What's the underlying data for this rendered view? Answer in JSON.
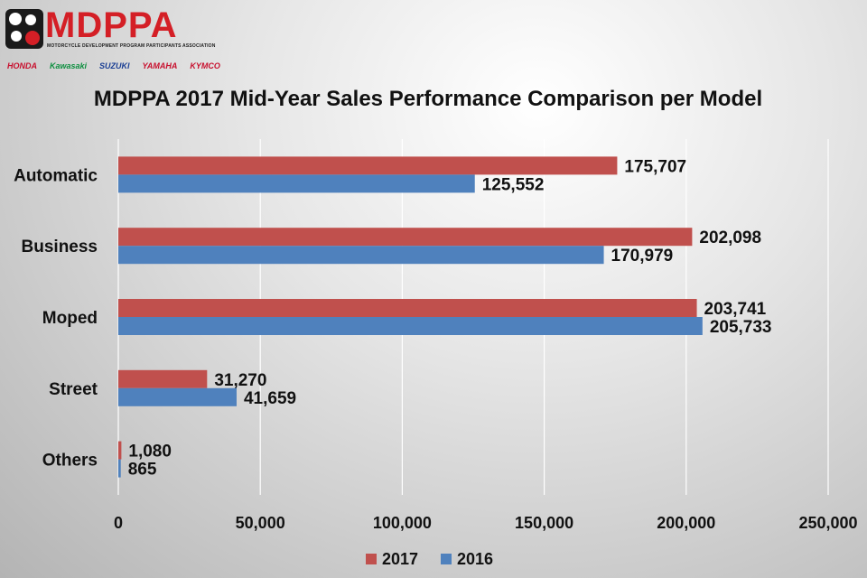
{
  "logo": {
    "brand_name": "MDPPA",
    "brand_subtitle": "MOTORCYCLE DEVELOPMENT PROGRAM PARTICIPANTS ASSOCIATION",
    "makers": [
      "HONDA",
      "Kawasaki",
      "SUZUKI",
      "YAMAHA",
      "KYMCO"
    ]
  },
  "colors": {
    "series_2017": "#c0504d",
    "series_2016": "#4f81bd",
    "grid": "#ffffff",
    "text": "#111111"
  },
  "chart_data": {
    "type": "bar",
    "orientation": "horizontal",
    "title": "MDPPA 2017 Mid-Year Sales Performance Comparison per Model",
    "categories": [
      "Automatic",
      "Business",
      "Moped",
      "Street",
      "Others"
    ],
    "series": [
      {
        "name": "2017",
        "values": [
          175707,
          202098,
          203741,
          31270,
          1080
        ],
        "labels": [
          "175,707",
          "202,098",
          "203,741",
          "31,270",
          "1,080"
        ]
      },
      {
        "name": "2016",
        "values": [
          125552,
          170979,
          205733,
          41659,
          865
        ],
        "labels": [
          "125,552",
          "170,979",
          "205,733",
          "41,659",
          "865"
        ]
      }
    ],
    "xlim": [
      0,
      250000
    ],
    "xticks": [
      0,
      50000,
      100000,
      150000,
      200000,
      250000
    ],
    "xtick_labels": [
      "0",
      "50,000",
      "100,000",
      "150,000",
      "200,000",
      "250,000"
    ],
    "grid": true,
    "legend_position": "bottom"
  }
}
